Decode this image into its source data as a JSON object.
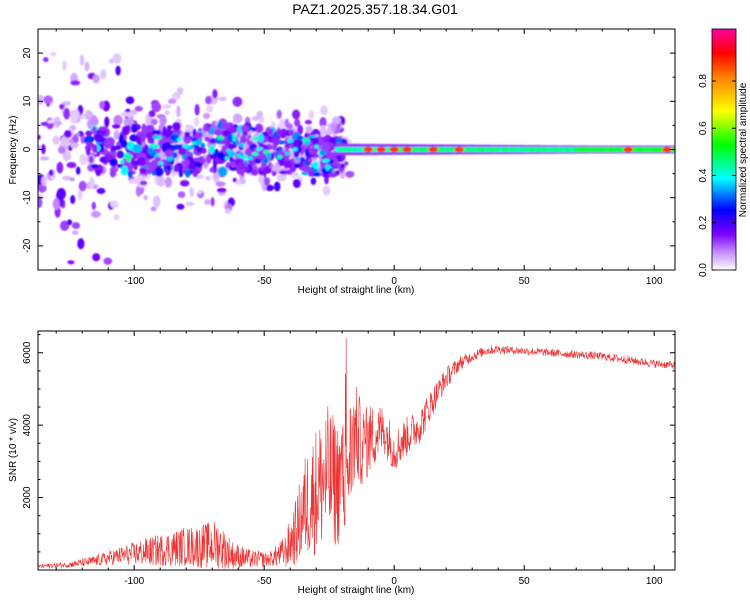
{
  "title": "PAZ1.2025.357.18.34.G01",
  "chart_data": [
    {
      "type": "heatmap",
      "title": "PAZ1.2025.357.18.34.G01",
      "xlabel": "Height of straight line (km)",
      "ylabel": "Frequency (Hz)",
      "xlim": [
        -137,
        108
      ],
      "ylim": [
        -25,
        25
      ],
      "xticks": [
        -100,
        -50,
        0,
        50,
        100
      ],
      "yticks": [
        -20,
        -10,
        0,
        10,
        20
      ],
      "xtick_labels": [
        "-100",
        "-50",
        "0",
        "50",
        "100"
      ],
      "ytick_labels": [
        "-20",
        "-10",
        "0",
        "10",
        "20"
      ],
      "colorbar": {
        "label": "Normalized spectral amplitude",
        "range": [
          0,
          1
        ],
        "ticks": [
          0.0,
          0.2,
          0.4,
          0.6,
          0.8
        ],
        "tick_labels": [
          "0.0",
          "0.2",
          "0.4",
          "0.6",
          "0.8"
        ],
        "colors": [
          "#ffffff",
          "#7b00ff",
          "#0000ff",
          "#00ffff",
          "#00ff00",
          "#ffff00",
          "#ff0000",
          "#ff00a0"
        ]
      },
      "description_points": {
        "main_line_frequency_hz": 0,
        "noise_region_km": [
          -137,
          -20
        ],
        "transition_km": [
          -30,
          -10
        ],
        "strong_spots_km": [
          -10,
          -5,
          0,
          5,
          15,
          25,
          90,
          105
        ]
      }
    },
    {
      "type": "line",
      "xlabel": "Height of straight line (km)",
      "ylabel": "SNR (10 * v/v)",
      "xlim": [
        -137,
        108
      ],
      "ylim": [
        0,
        6600
      ],
      "xticks": [
        -100,
        -50,
        0,
        50,
        100
      ],
      "yticks": [
        2000,
        4000,
        6000
      ],
      "xtick_labels": [
        "-100",
        "-50",
        "0",
        "50",
        "100"
      ],
      "ytick_labels": [
        "2000",
        "4000",
        "6000"
      ],
      "series": [
        {
          "name": "SNR",
          "color": "#ee3333",
          "x": [
            -137,
            -125,
            -115,
            -105,
            -95,
            -85,
            -80,
            -75,
            -68,
            -62,
            -55,
            -48,
            -42,
            -38,
            -34,
            -30,
            -26,
            -22,
            -18,
            -15,
            -12,
            -8,
            -4,
            0,
            5,
            10,
            15,
            20,
            25,
            30,
            35,
            40,
            45,
            50,
            60,
            70,
            80,
            90,
            100,
            108
          ],
          "mean": [
            100,
            150,
            250,
            400,
            500,
            600,
            650,
            650,
            700,
            400,
            300,
            300,
            500,
            1000,
            1800,
            2200,
            2600,
            2400,
            2800,
            3800,
            3400,
            3700,
            3900,
            3300,
            3700,
            4000,
            4700,
            5300,
            5700,
            5900,
            6050,
            6100,
            6070,
            6050,
            6000,
            5950,
            5900,
            5800,
            5700,
            5650
          ],
          "amp": [
            60,
            80,
            150,
            250,
            400,
            500,
            550,
            600,
            700,
            400,
            250,
            200,
            450,
            900,
            1500,
            1800,
            2000,
            1800,
            1800,
            1400,
            1100,
            900,
            700,
            600,
            550,
            500,
            400,
            300,
            200,
            150,
            130,
            120,
            110,
            110,
            110,
            110,
            110,
            110,
            110,
            110
          ]
        }
      ]
    }
  ]
}
